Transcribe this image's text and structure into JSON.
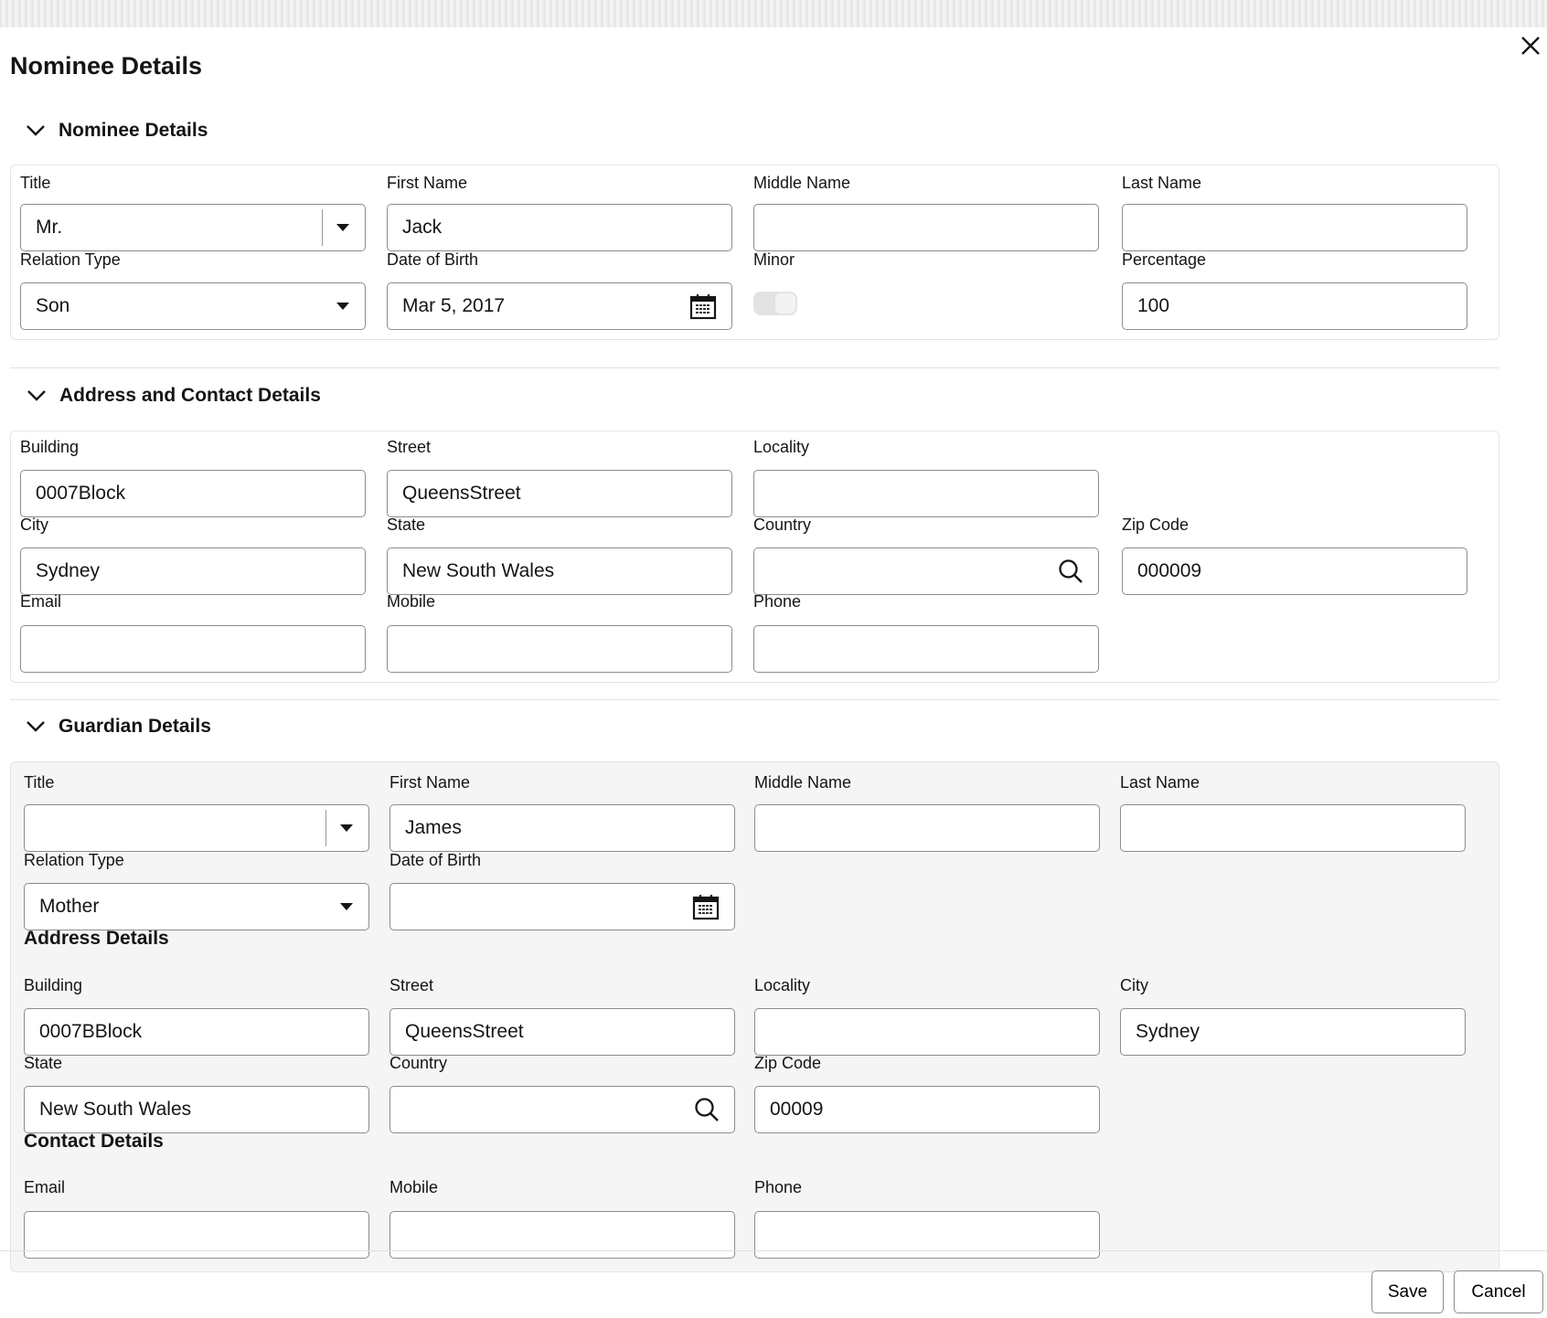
{
  "dialog": {
    "title": "Nominee Details",
    "close_icon": "close-icon"
  },
  "nominee": {
    "section_title": "Nominee Details",
    "title": {
      "label": "Title",
      "value": "Mr."
    },
    "first_name": {
      "label": "First Name",
      "value": "Jack"
    },
    "middle_name": {
      "label": "Middle Name",
      "value": ""
    },
    "last_name": {
      "label": "Last Name",
      "value": ""
    },
    "relation_type": {
      "label": "Relation Type",
      "value": "Son"
    },
    "date_of_birth": {
      "label": "Date of Birth",
      "value": "Mar 5, 2017"
    },
    "minor": {
      "label": "Minor",
      "value": false
    },
    "percentage": {
      "label": "Percentage",
      "value": "100"
    }
  },
  "address": {
    "section_title": "Address and Contact Details",
    "building": {
      "label": "Building",
      "value": "0007Block"
    },
    "street": {
      "label": "Street",
      "value": "QueensStreet"
    },
    "locality": {
      "label": "Locality",
      "value": ""
    },
    "city": {
      "label": "City",
      "value": "Sydney"
    },
    "state": {
      "label": "State",
      "value": "New South Wales"
    },
    "country": {
      "label": "Country",
      "value": ""
    },
    "zip_code": {
      "label": "Zip Code",
      "value": "000009"
    },
    "email": {
      "label": "Email",
      "value": ""
    },
    "mobile": {
      "label": "Mobile",
      "value": ""
    },
    "phone": {
      "label": "Phone",
      "value": ""
    }
  },
  "guardian": {
    "section_title": "Guardian Details",
    "title": {
      "label": "Title",
      "value": ""
    },
    "first_name": {
      "label": "First Name",
      "value": "James"
    },
    "middle_name": {
      "label": "Middle Name",
      "value": ""
    },
    "last_name": {
      "label": "Last Name",
      "value": ""
    },
    "relation_type": {
      "label": "Relation Type",
      "value": "Mother"
    },
    "date_of_birth": {
      "label": "Date of Birth",
      "value": ""
    },
    "address_heading": "Address Details",
    "building": {
      "label": "Building",
      "value": "0007BBlock"
    },
    "street": {
      "label": "Street",
      "value": "QueensStreet"
    },
    "locality": {
      "label": "Locality",
      "value": ""
    },
    "city": {
      "label": "City",
      "value": "Sydney"
    },
    "state": {
      "label": "State",
      "value": "New South Wales"
    },
    "country": {
      "label": "Country",
      "value": ""
    },
    "zip_code": {
      "label": "Zip Code",
      "value": "00009"
    },
    "contact_heading": "Contact Details",
    "email": {
      "label": "Email",
      "value": ""
    },
    "mobile": {
      "label": "Mobile",
      "value": ""
    },
    "phone": {
      "label": "Phone",
      "value": ""
    }
  },
  "footer": {
    "save_label": "Save",
    "cancel_label": "Cancel"
  }
}
